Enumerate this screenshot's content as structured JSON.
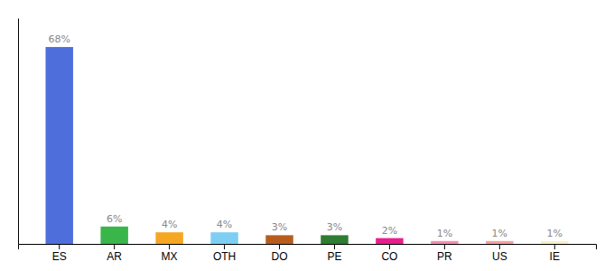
{
  "chart_data": {
    "type": "bar",
    "categories": [
      "ES",
      "AR",
      "MX",
      "OTH",
      "DO",
      "PE",
      "CO",
      "PR",
      "US",
      "IE"
    ],
    "values": [
      68,
      6,
      4,
      4,
      3,
      3,
      2,
      1,
      1,
      1
    ],
    "value_labels": [
      "68%",
      "6%",
      "4%",
      "4%",
      "3%",
      "3%",
      "2%",
      "1%",
      "1%",
      "1%"
    ],
    "colors": [
      "#4e6fdb",
      "#3ab54a",
      "#f5a623",
      "#7ecef4",
      "#b85c1e",
      "#2e7d32",
      "#e91e8c",
      "#f48fb1",
      "#f4a0a0",
      "#f5f0c8"
    ],
    "ylim": [
      0,
      78
    ],
    "data_labels": true,
    "tick_labels": "x",
    "grid": false
  }
}
